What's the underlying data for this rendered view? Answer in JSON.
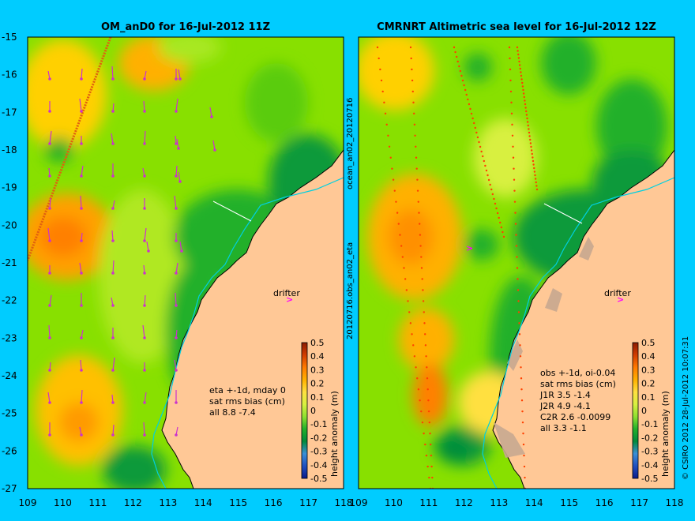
{
  "left_panel": {
    "title": "OM_anD0 for 16-Jul-2012 11Z",
    "drifter_label": "drifter",
    "stats": [
      "eta +-1d, mday 0",
      "sat rms bias (cm)",
      "all 8.8 -7.4"
    ]
  },
  "right_panel": {
    "title": "CMRNRT Altimetric sea level  for 16-Jul-2012 12Z",
    "drifter_label": "drifter",
    "stats": [
      "obs +-1d, oi-0.04",
      "sat rms bias (cm)",
      "J1R   3.5 -1.4",
      "J2R   4.9 -4.1",
      "C2R   2.6 -0.0099",
      "all 3.3 -1.1"
    ]
  },
  "axes": {
    "lon_ticks": [
      "109",
      "110",
      "111",
      "112",
      "113",
      "114",
      "115",
      "116",
      "117",
      "118"
    ],
    "lat_ticks": [
      "-15",
      "-16",
      "-17",
      "-18",
      "-19",
      "-20",
      "-21",
      "-22",
      "-23",
      "-24",
      "-25",
      "-26",
      "-27"
    ]
  },
  "colorbar": {
    "label": "height anomaly (m)",
    "ticks": [
      "0.5",
      "0.4",
      "0.3",
      "0.2",
      "0.1",
      "0",
      "-0.1",
      "-0.2",
      "-0.3",
      "-0.4",
      "-0.5"
    ],
    "colors": [
      "#8b1a00",
      "#d23c00",
      "#ff7a00",
      "#ffb000",
      "#ffe040",
      "#d8f040",
      "#8fe030",
      "#22b02a",
      "#008a3a",
      "#3a8fd6",
      "#1f4fc0",
      "#0a1a8a"
    ]
  },
  "side_text": {
    "middle": "20120716.obs_an02_eta",
    "middle_top": "ocean_an02_20120716",
    "right": "© CSIRO 2012   28-Jul-2012 10:07:31"
  },
  "colors": {
    "background": "#00ccff",
    "land": "#ffc896",
    "ocean_base": "#88e000",
    "warm": "#ffc000",
    "hot": "#ff9000",
    "cool": "#0aa83a",
    "coastline": "#00d0e0",
    "arrow": "#cc33cc"
  }
}
